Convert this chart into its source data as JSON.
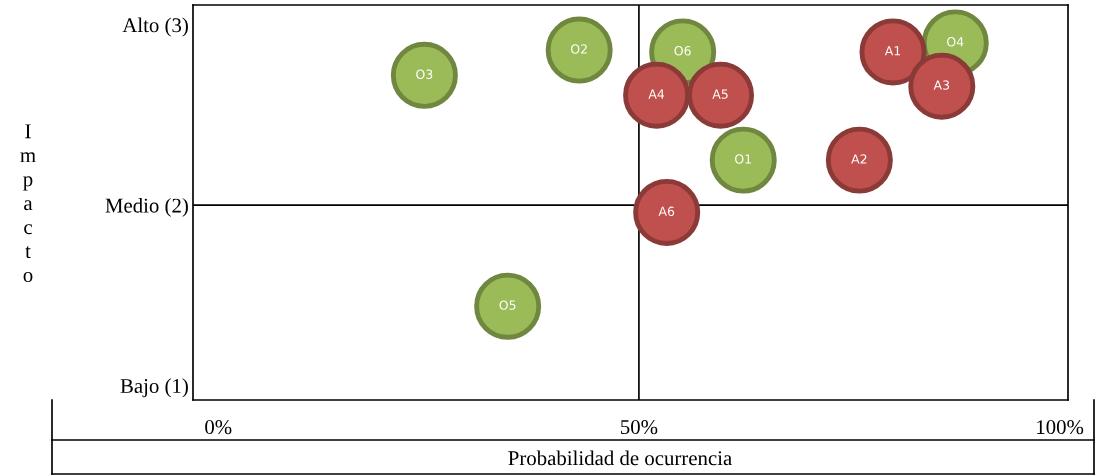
{
  "chart_data": {
    "type": "scatter",
    "xlabel": "Probabilidad de ocurrencia",
    "ylabel": "Impacto",
    "xlim": [
      -3,
      101
    ],
    "xticks": [
      {
        "value": 0,
        "label": "0%"
      },
      {
        "value": 50,
        "label": "50%"
      },
      {
        "value": 100,
        "label": "100%"
      }
    ],
    "ylim": [
      0.92,
      3.11
    ],
    "yticks": [
      {
        "value": 1,
        "label": "Bajo (1)"
      },
      {
        "value": 2,
        "label": "Medio (2)"
      },
      {
        "value": 3,
        "label": "Alto (3)"
      }
    ],
    "grid": false,
    "legend": false,
    "marker": "circle",
    "ref_lines": [
      {
        "axis": "x",
        "value": 50,
        "color": "#000000"
      },
      {
        "axis": "y",
        "value": 2,
        "color": "#000000"
      }
    ],
    "series": [
      {
        "color": "#9bbb59",
        "x": [
          24.5,
          42.9,
          55.2,
          87.6,
          62.4,
          34.4
        ],
        "values": [
          2.72,
          2.86,
          2.85,
          2.9,
          2.25,
          1.44
        ],
        "value_labels": [
          "O3",
          "O2",
          "O6",
          "O4",
          "O1",
          "O5"
        ]
      },
      {
        "color": "#c0504d",
        "x": [
          80.2,
          86.0,
          52.1,
          59.7,
          76.2,
          53.3
        ],
        "values": [
          2.85,
          2.66,
          2.61,
          2.61,
          2.25,
          1.96
        ],
        "value_labels": [
          "A1",
          "A3",
          "A4",
          "A5",
          "A2",
          "A6"
        ]
      }
    ]
  }
}
